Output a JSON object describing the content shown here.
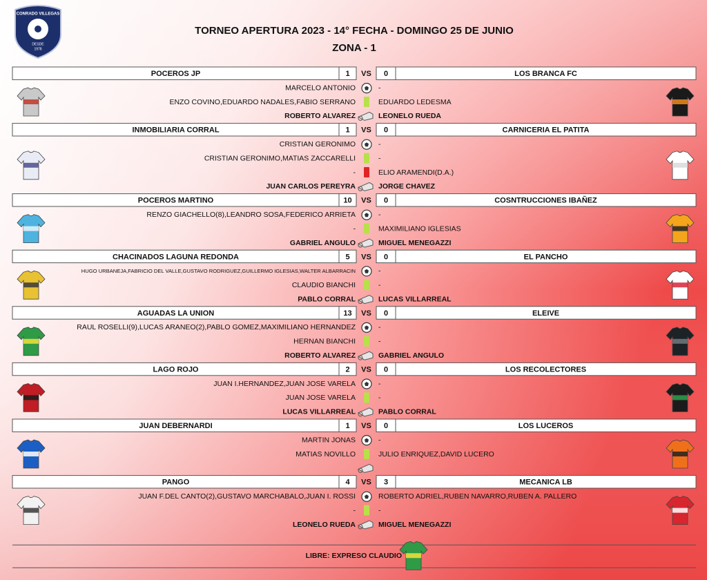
{
  "logo": {
    "club": "CONRADO VILLEGAS",
    "since": "DESDE",
    "year": "1978"
  },
  "header": {
    "title": "TORNEO APERTURA 2023 - 14° FECHA - DOMINGO 25 DE JUNIO",
    "subtitle": "ZONA - 1"
  },
  "vs_label": "VS",
  "matches": [
    {
      "home": "POCEROS JP",
      "home_score": 1,
      "away_score": 0,
      "away": "LOS BRANCA FC",
      "goals": [
        "MARCELO ANTONIO",
        "-"
      ],
      "yellow_cards": [
        "ENZO COVINO,EDUARDO NADALES,FABIO SERRANO",
        "EDUARDO LEDESMA"
      ],
      "officials": [
        "ROBERTO ALVAREZ",
        "LEONELO RUEDA"
      ]
    },
    {
      "home": "INMOBILIARIA CORRAL",
      "home_score": 1,
      "away_score": 0,
      "away": "CARNICERIA EL PATITA",
      "goals": [
        "CRISTIAN GERONIMO",
        "-"
      ],
      "yellow_cards": [
        "CRISTIAN GERONIMO,MATIAS ZACCARELLI",
        "-"
      ],
      "red_cards": [
        "-",
        "ELIO ARAMENDI(D.A.)"
      ],
      "officials": [
        "JUAN CARLOS PEREYRA",
        "JORGE CHAVEZ"
      ]
    },
    {
      "home": "POCEROS MARTINO",
      "home_score": 10,
      "away_score": 0,
      "away": "COSNTRUCCIONES IBAÑEZ",
      "goals": [
        "RENZO GIACHELLO(8),LEANDRO SOSA,FEDERICO ARRIETA",
        "-"
      ],
      "yellow_cards": [
        "-",
        "MAXIMILIANO IGLESIAS"
      ],
      "officials": [
        "GABRIEL ANGULO",
        "MIGUEL MENEGAZZI"
      ]
    },
    {
      "home": "CHACINADOS LAGUNA REDONDA",
      "home_score": 5,
      "away_score": 0,
      "away": "EL PANCHO",
      "goals": [
        "HUGO URBANEJA,FABRICIO DEL VALLE,GUSTAVO RODRIGUEZ,GUILLERMO IGLESIAS,WALTER ALBARRACIN",
        "-"
      ],
      "yellow_cards": [
        "CLAUDIO BIANCHI",
        "-"
      ],
      "officials": [
        "PABLO CORRAL",
        "LUCAS VILLARREAL"
      ]
    },
    {
      "home": "AGUADAS LA UNION",
      "home_score": 13,
      "away_score": 0,
      "away": "ELEIVE",
      "goals": [
        "RAUL ROSELLI(9),LUCAS ARANEO(2),PABLO GOMEZ,MAXIMILIANO HERNANDEZ",
        "-"
      ],
      "yellow_cards": [
        "HERNAN BIANCHI",
        "-"
      ],
      "officials": [
        "ROBERTO ALVAREZ",
        "GABRIEL ANGULO"
      ]
    },
    {
      "home": "LAGO ROJO",
      "home_score": 2,
      "away_score": 0,
      "away": "LOS RECOLECTORES",
      "goals": [
        "JUAN I.HERNANDEZ,JUAN JOSE VARELA",
        "-"
      ],
      "yellow_cards": [
        "JUAN JOSE VARELA",
        "-"
      ],
      "officials": [
        "LUCAS VILLARREAL",
        "PABLO CORRAL"
      ]
    },
    {
      "home": "JUAN DEBERNARDI",
      "home_score": 1,
      "away_score": 0,
      "away": "LOS LUCEROS",
      "goals": [
        "MARTIN JONAS",
        "-"
      ],
      "yellow_cards": [
        "MATIAS NOVILLO",
        "JULIO ENRIQUEZ,DAVID LUCERO"
      ]
    },
    {
      "home": "PANGO",
      "home_score": 4,
      "away_score": 3,
      "away": "MECANICA LB",
      "goals": [
        "JUAN F.DEL CANTO(2),GUSTAVO MARCHABALO,JUAN I. ROSSI",
        "ROBERTO ADRIEL,RUBEN NAVARRO,RUBEN A. PALLERO"
      ],
      "yellow_cards": [
        "-",
        "-"
      ],
      "officials": [
        "LEONELO RUEDA",
        "MIGUEL MENEGAZZI"
      ]
    }
  ],
  "footer": {
    "bye": "LIBRE: EXPRESO CLAUDIO"
  }
}
